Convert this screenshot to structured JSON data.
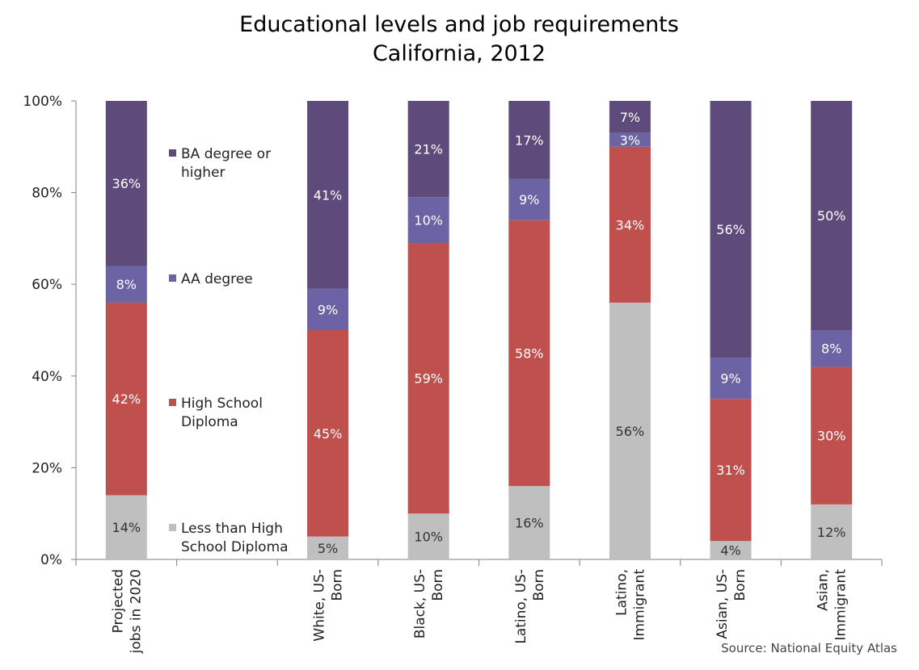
{
  "chart_data": {
    "type": "bar",
    "stacked": true,
    "title": "Educational levels and job requirements",
    "subtitle": "California, 2012",
    "ylabel": "",
    "xlabel": "",
    "ylim": [
      0,
      100
    ],
    "yticks": [
      "0%",
      "20%",
      "40%",
      "60%",
      "80%",
      "100%"
    ],
    "categories": [
      [
        "Projected",
        "jobs in 2020"
      ],
      [],
      [
        "White, US-",
        "Born"
      ],
      [
        "Black, US-",
        "Born"
      ],
      [
        "Latino, US-",
        "Born"
      ],
      [
        "Latino,",
        "Immigrant"
      ],
      [
        "Asian, US-",
        "Born"
      ],
      [
        "Asian,",
        "Immigrant"
      ]
    ],
    "series": [
      {
        "name": "Less than High School Diploma",
        "legend_lines": [
          "Less than High",
          "School Diploma"
        ],
        "color": "#bfbfbf",
        "label_color": "#333333",
        "values": [
          14,
          null,
          5,
          10,
          16,
          56,
          4,
          12
        ]
      },
      {
        "name": "High School Diploma",
        "legend_lines": [
          "High School",
          "Diploma"
        ],
        "color": "#c0504d",
        "label_color": "#ffffff",
        "values": [
          42,
          null,
          45,
          59,
          58,
          34,
          31,
          30
        ]
      },
      {
        "name": "AA degree",
        "legend_lines": [
          "AA degree"
        ],
        "color": "#6b63a3",
        "label_color": "#ffffff",
        "values": [
          8,
          null,
          9,
          10,
          9,
          3,
          9,
          8
        ]
      },
      {
        "name": "BA degree or higher",
        "legend_lines": [
          "BA degree or",
          "higher"
        ],
        "color": "#5e4b7c",
        "label_color": "#ffffff",
        "values": [
          36,
          null,
          41,
          21,
          17,
          7,
          56,
          50
        ]
      }
    ],
    "legend_position": "inside-left",
    "grid": false,
    "source": "Source: National Equity Atlas"
  }
}
